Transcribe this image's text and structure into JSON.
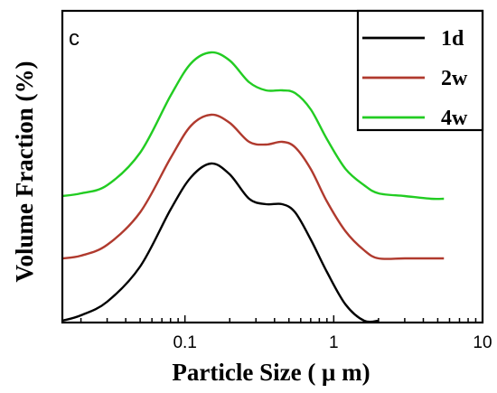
{
  "chart_data": {
    "type": "line",
    "panel_label": "c",
    "xlabel": "Particle Size ( μ m)",
    "ylabel": "Volume Fraction (%)",
    "xscale": "log",
    "xlim": [
      0.015,
      10
    ],
    "ylim": [
      0,
      1
    ],
    "xticks": [
      {
        "value": 0.1,
        "label": "0.1"
      },
      {
        "value": 1,
        "label": "1"
      },
      {
        "value": 10,
        "label": "10"
      }
    ],
    "grid": false,
    "legend_position": "top-right",
    "series": [
      {
        "name": "1d",
        "color": "#000000",
        "x": [
          0.015,
          0.02,
          0.03,
          0.05,
          0.08,
          0.11,
          0.15,
          0.2,
          0.27,
          0.35,
          0.45,
          0.55,
          0.7,
          0.9,
          1.2,
          1.6,
          2.0
        ],
        "y": [
          0.0,
          0.02,
          0.07,
          0.2,
          0.41,
          0.53,
          0.58,
          0.54,
          0.45,
          0.43,
          0.43,
          0.4,
          0.3,
          0.18,
          0.06,
          0.0,
          0.0
        ]
      },
      {
        "name": "2w",
        "color": "#b03a2e",
        "x": [
          0.015,
          0.02,
          0.03,
          0.05,
          0.08,
          0.11,
          0.15,
          0.2,
          0.27,
          0.35,
          0.45,
          0.55,
          0.7,
          0.9,
          1.2,
          1.6,
          2.0,
          3.0,
          4.5,
          5.5
        ],
        "y": [
          0.23,
          0.24,
          0.28,
          0.4,
          0.6,
          0.72,
          0.76,
          0.73,
          0.66,
          0.65,
          0.66,
          0.64,
          0.56,
          0.44,
          0.33,
          0.26,
          0.23,
          0.23,
          0.23,
          0.23
        ]
      },
      {
        "name": "4w",
        "color": "#22cc22",
        "x": [
          0.015,
          0.02,
          0.03,
          0.05,
          0.08,
          0.11,
          0.15,
          0.2,
          0.27,
          0.35,
          0.45,
          0.55,
          0.7,
          0.9,
          1.2,
          1.6,
          2.0,
          3.0,
          4.5,
          5.5
        ],
        "y": [
          0.46,
          0.47,
          0.5,
          0.62,
          0.83,
          0.95,
          0.99,
          0.96,
          0.88,
          0.85,
          0.85,
          0.84,
          0.78,
          0.67,
          0.56,
          0.5,
          0.47,
          0.46,
          0.45,
          0.45
        ]
      }
    ]
  }
}
